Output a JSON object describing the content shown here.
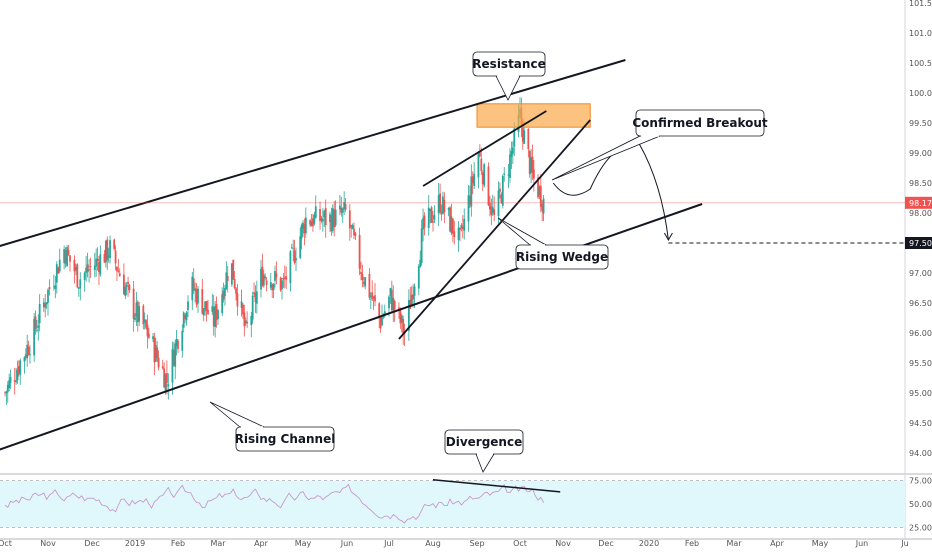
{
  "chart_data": [
    {
      "type": "candlestick",
      "title": "",
      "x_tick_labels": [
        "Oct",
        "Nov",
        "Dec",
        "2019",
        "Feb",
        "Mar",
        "Apr",
        "May",
        "Jun",
        "Jul",
        "Aug",
        "Sep",
        "Oct",
        "Nov",
        "Dec",
        "2020",
        "Feb",
        "Mar",
        "Apr",
        "May",
        "Jun",
        "Ju"
      ],
      "y_tick_labels": [
        "101.50",
        "101.00",
        "100.50",
        "100.00",
        "99.50",
        "99.00",
        "98.50",
        "98.00",
        "97.50",
        "97.00",
        "96.50",
        "96.00",
        "95.50",
        "95.00",
        "94.50",
        "94.00"
      ],
      "ylim": [
        93.9,
        101.6
      ],
      "current_price": {
        "label": "98.17",
        "value": 98.17,
        "color": "#ef5350"
      },
      "target_price": {
        "label": "97.50",
        "value": 97.5,
        "color": "#131722"
      },
      "annotations": [
        {
          "text": "Resistance"
        },
        {
          "text": "Confirmed Breakout"
        },
        {
          "text": "Rising Wedge"
        },
        {
          "text": "Rising Channel"
        },
        {
          "text": "Divergence"
        }
      ],
      "channel_upper": {
        "x": [
          "2018-09-20",
          "2019-12-15"
        ],
        "y": [
          97.4,
          100.55
        ]
      },
      "channel_lower": {
        "x": [
          "2018-09-20",
          "2020-02-08"
        ],
        "y": [
          94.0,
          98.15
        ]
      },
      "wedge_upper": {
        "x": [
          "2019-07-25",
          "2019-10-20"
        ],
        "y": [
          98.45,
          99.7
        ]
      },
      "wedge_lower": {
        "x": [
          "2019-07-08",
          "2019-11-20"
        ],
        "y": [
          95.9,
          99.55
        ]
      },
      "resistance_zone": {
        "x": [
          "2019-09-01",
          "2019-11-20"
        ],
        "y": [
          99.43,
          99.82
        ]
      },
      "projected_path": [
        {
          "x": "2019-10-25",
          "y": 98.5
        },
        {
          "x": "2019-11-05",
          "y": 98.15
        },
        {
          "x": "2019-11-20",
          "y": 98.4
        },
        {
          "x": "2019-12-05",
          "y": 99.2
        },
        {
          "x": "2019-12-25",
          "y": 99.15
        },
        {
          "x": "2020-01-10",
          "y": 98.5
        },
        {
          "x": "2020-01-15",
          "y": 97.55
        }
      ],
      "target_line": {
        "x": [
          "2020-01-15",
          "2020-06-30"
        ],
        "y": 97.5
      },
      "colors": {
        "up": "#26a69a",
        "down": "#ef5350",
        "channel": "#131722",
        "zone": "#f9a84a"
      }
    },
    {
      "type": "line",
      "title": "",
      "y_tick_labels": [
        "75.00",
        "50.00",
        "25.00"
      ],
      "ylim": [
        20,
        80
      ],
      "band": [
        25,
        75
      ],
      "divergence_line": {
        "x": [
          "2019-08-01",
          "2019-10-30"
        ],
        "y": [
          76,
          63
        ]
      },
      "colors": {
        "line": "#c78fc7",
        "band": "#e0f7fb"
      }
    }
  ]
}
